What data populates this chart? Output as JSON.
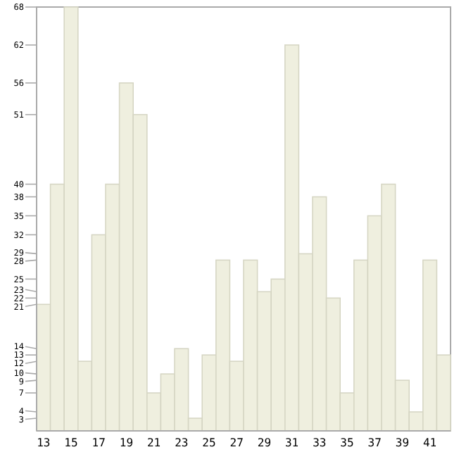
{
  "chart_data": {
    "type": "bar",
    "categories": [
      "13",
      null,
      "15",
      null,
      "17",
      null,
      "19",
      null,
      "21",
      null,
      "23",
      null,
      "25",
      null,
      "27",
      null,
      "29",
      null,
      "31",
      null,
      "33",
      null,
      "35",
      null,
      "37",
      null,
      "39",
      null,
      "41",
      null
    ],
    "values": [
      21,
      40,
      68,
      12,
      32,
      40,
      56,
      51,
      7,
      10,
      14,
      3,
      13,
      28,
      12,
      28,
      23,
      25,
      62,
      29,
      38,
      22,
      7,
      28,
      35,
      40,
      9,
      4,
      28,
      13
    ],
    "color": "#efefdf",
    "ylim": [
      1,
      68
    ],
    "yticks": [
      3,
      4,
      7,
      9,
      10,
      12,
      13,
      14,
      21,
      22,
      23,
      25,
      28,
      29,
      32,
      35,
      38,
      40,
      51,
      56,
      62,
      68
    ],
    "grid": false
  }
}
